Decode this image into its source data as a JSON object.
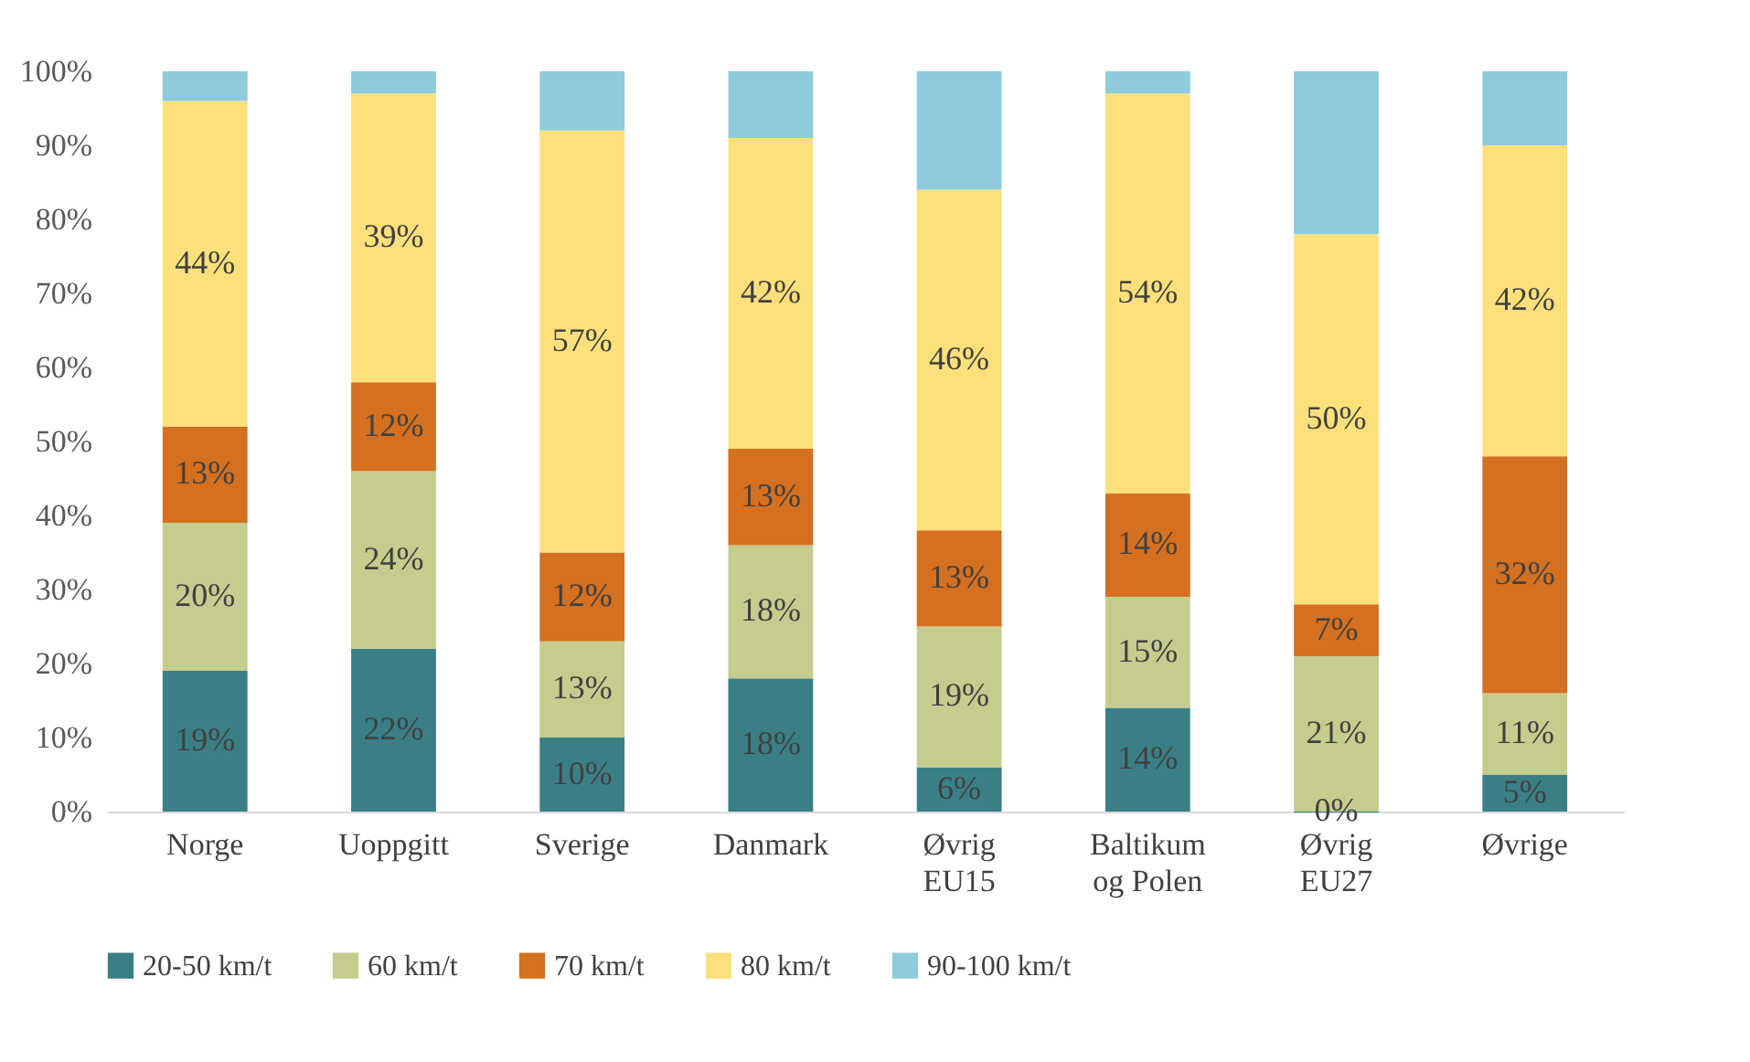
{
  "chart_data": {
    "type": "bar",
    "stacked": true,
    "categories": [
      "Norge",
      "Uoppgitt",
      "Sverige",
      "Danmark",
      "Øvrig\nEU15",
      "Baltikum\nog Polen",
      "Øvrig\nEU27",
      "Øvrige"
    ],
    "series": [
      {
        "name": "20-50 km/t",
        "color": "#3a7f86",
        "values": [
          19,
          22,
          10,
          18,
          6,
          14,
          0,
          5
        ],
        "value_labels": [
          "19%",
          "22%",
          "10%",
          "18%",
          "6%",
          "14%",
          "0%",
          "5%"
        ]
      },
      {
        "name": "60 km/t",
        "color": "#c5cc8d",
        "values": [
          20,
          24,
          13,
          18,
          19,
          15,
          21,
          11
        ],
        "value_labels": [
          "20%",
          "24%",
          "13%",
          "18%",
          "19%",
          "15%",
          "21%",
          "11%"
        ]
      },
      {
        "name": "70 km/t",
        "color": "#d4701f",
        "values": [
          13,
          12,
          12,
          13,
          13,
          14,
          7,
          32
        ],
        "value_labels": [
          "13%",
          "12%",
          "12%",
          "13%",
          "13%",
          "14%",
          "7%",
          "32%"
        ]
      },
      {
        "name": "80 km/t",
        "color": "#fde07a",
        "values": [
          44,
          39,
          57,
          42,
          46,
          54,
          50,
          42
        ],
        "value_labels": [
          "44%",
          "39%",
          "57%",
          "42%",
          "46%",
          "54%",
          "50%",
          "42%"
        ]
      },
      {
        "name": "90-100 km/t",
        "color": "#8ecbdc",
        "values": [
          4,
          3,
          8,
          9,
          16,
          3,
          22,
          10
        ]
      }
    ],
    "ylim": [
      0,
      100
    ],
    "yticks": [
      {
        "value": 0,
        "label": "0%"
      },
      {
        "value": 10,
        "label": "10%"
      },
      {
        "value": 20,
        "label": "20%"
      },
      {
        "value": 30,
        "label": "30%"
      },
      {
        "value": 40,
        "label": "40%"
      },
      {
        "value": 50,
        "label": "50%"
      },
      {
        "value": 60,
        "label": "60%"
      },
      {
        "value": 70,
        "label": "70%"
      },
      {
        "value": 80,
        "label": "80%"
      },
      {
        "value": 90,
        "label": "90%"
      },
      {
        "value": 100,
        "label": "100%"
      }
    ],
    "grid": false,
    "legend": "bottom"
  }
}
